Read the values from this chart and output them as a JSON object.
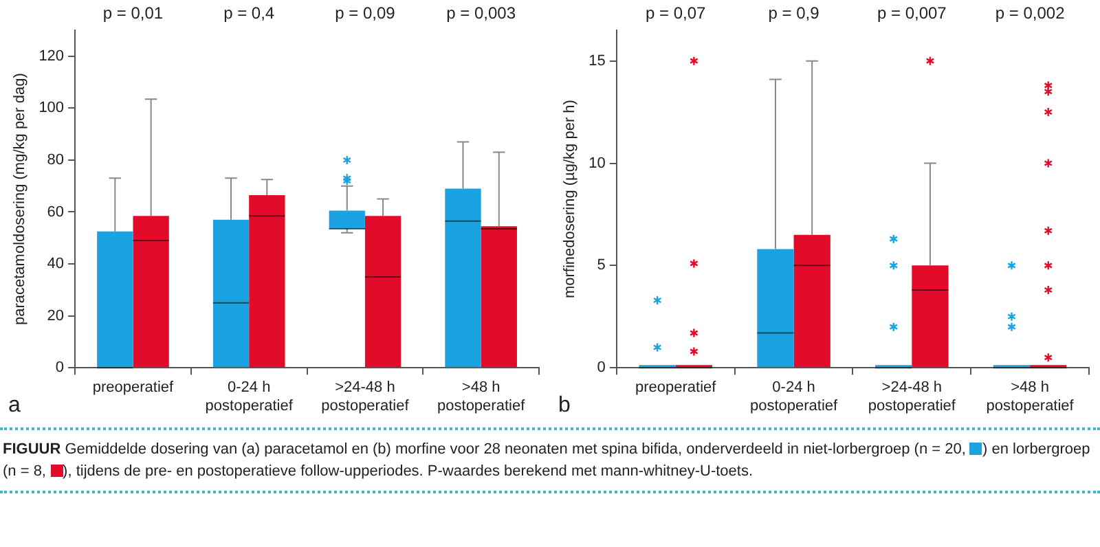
{
  "chart_data": [
    {
      "type": "box",
      "ylabel": "paracetamoldosering (mg/kg per dag)",
      "categories": [
        "preoperatief",
        "0-24 h postoperatief",
        ">24-48 h postoperatief",
        ">48 h postoperatief"
      ],
      "ylim": [
        0,
        130
      ],
      "yticks": [
        0,
        20,
        40,
        60,
        80,
        100,
        120
      ],
      "grid": false,
      "legend": false,
      "marker": "star",
      "series": [
        {
          "color": "#1aa3e0",
          "boxes": [
            {
              "low": 0,
              "q1": 0,
              "median": 0,
              "q3": 52.5,
              "high": 73
            },
            {
              "low": 0,
              "q1": 0,
              "median": 25,
              "q3": 57,
              "high": 73
            },
            {
              "low": 52,
              "q1": 53.5,
              "median": 53.5,
              "q3": 60.5,
              "high": 70,
              "outliers": [
                72,
                73,
                80
              ]
            },
            {
              "low": 0,
              "q1": 0,
              "median": 56.5,
              "q3": 69,
              "high": 87
            }
          ]
        },
        {
          "color": "#e30b2a",
          "boxes": [
            {
              "low": 0,
              "q1": 0,
              "median": 49,
              "q3": 58.5,
              "high": 103.5
            },
            {
              "low": 0,
              "q1": 0,
              "median": 58.5,
              "q3": 66.5,
              "high": 72.5
            },
            {
              "low": 0,
              "q1": 0,
              "median": 35,
              "q3": 58.5,
              "high": 65
            },
            {
              "low": 0,
              "q1": 0,
              "median": 53.5,
              "q3": 54.5,
              "high": 83
            }
          ]
        }
      ],
      "annotations": [
        "p = 0,01",
        "p = 0,4",
        "p = 0,09",
        "p = 0,003",
        "a"
      ]
    },
    {
      "type": "box",
      "ylabel": "morfinedosering (µg/kg per h)",
      "categories": [
        "preoperatief",
        "0-24 h postoperatief",
        ">24-48 h postoperatief",
        ">48 h postoperatief"
      ],
      "ylim": [
        0,
        16.5
      ],
      "yticks": [
        0,
        5,
        10,
        15
      ],
      "grid": false,
      "legend": false,
      "marker": "star",
      "series": [
        {
          "color": "#1aa3e0",
          "boxes": [
            {
              "low": 0,
              "q1": 0,
              "median": 0,
              "q3": 0,
              "high": 0,
              "outliers": [
                1.0,
                3.3
              ]
            },
            {
              "low": 0,
              "q1": 0,
              "median": 1.7,
              "q3": 5.8,
              "high": 14.1
            },
            {
              "low": 0,
              "q1": 0,
              "median": 0,
              "q3": 0,
              "high": 0,
              "outliers": [
                2.0,
                5.0,
                6.3
              ]
            },
            {
              "low": 0,
              "q1": 0,
              "median": 0,
              "q3": 0,
              "high": 0,
              "outliers": [
                2.0,
                2.5,
                5.0
              ]
            }
          ]
        },
        {
          "color": "#e30b2a",
          "boxes": [
            {
              "low": 0,
              "q1": 0,
              "median": 0,
              "q3": 0,
              "high": 0,
              "outliers": [
                0.8,
                1.7,
                5.1,
                15
              ]
            },
            {
              "low": 0,
              "q1": 0,
              "median": 5.0,
              "q3": 6.5,
              "high": 15
            },
            {
              "low": 0,
              "q1": 0,
              "median": 3.8,
              "q3": 5.0,
              "high": 10,
              "outliers": [
                15
              ]
            },
            {
              "low": 0,
              "q1": 0,
              "median": 0,
              "q3": 0,
              "high": 0,
              "outliers": [
                0.5,
                3.8,
                5.0,
                6.7,
                10,
                12.5,
                13.5,
                13.8
              ]
            }
          ]
        }
      ],
      "annotations": [
        "p = 0,07",
        "p = 0,9",
        "p = 0,007",
        "p = 0,002",
        "b",
        "FIGUUR",
        " Gemiddelde dosering van (a) paracetamol en (b) morfine voor 28 neonaten met spina bifida, onderverdeeld in niet-lorbergroep (n = 20, ",
        ") en lorbergroep (n = 8, ",
        "), tijdens de pre- en postoperatieve follow-upperiodes. P-waardes berekend met mann-whitney-U-toets."
      ]
    }
  ]
}
